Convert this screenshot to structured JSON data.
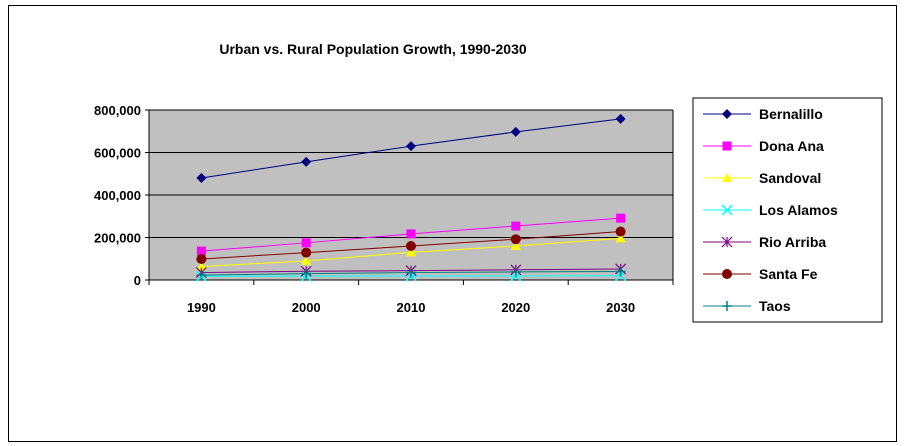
{
  "chart_data": {
    "type": "line",
    "title": "Urban vs. Rural Population Growth, 1990-2030",
    "xlabel": "",
    "ylabel": "",
    "categories": [
      "1990",
      "2000",
      "2010",
      "2020",
      "2030"
    ],
    "ylim": [
      0,
      800000
    ],
    "yticks": [
      0,
      200000,
      400000,
      600000,
      800000
    ],
    "ytick_labels": [
      "0",
      "200,000",
      "400,000",
      "600,000",
      "800,000"
    ],
    "grid": true,
    "plot_background": "#c0c0c0",
    "legend_position": "right",
    "series": [
      {
        "name": "Bernalillo",
        "color": "#000080",
        "marker": "diamond",
        "values": [
          480000,
          556000,
          630000,
          697000,
          758000
        ]
      },
      {
        "name": "Dona Ana",
        "color": "#ff00ff",
        "marker": "square",
        "values": [
          136000,
          175000,
          217000,
          254000,
          291000
        ]
      },
      {
        "name": "Sandoval",
        "color": "#ffff00",
        "marker": "triangle",
        "values": [
          63000,
          90000,
          130000,
          160000,
          196000
        ]
      },
      {
        "name": "Los Alamos",
        "color": "#00ffff",
        "marker": "x",
        "values": [
          18000,
          18000,
          19000,
          19000,
          20000
        ]
      },
      {
        "name": "Rio Arriba",
        "color": "#800080",
        "marker": "asterisk",
        "values": [
          35000,
          41000,
          44000,
          48000,
          52000
        ]
      },
      {
        "name": "Santa Fe",
        "color": "#800000",
        "marker": "circle",
        "values": [
          99000,
          129000,
          160000,
          192000,
          228000
        ]
      },
      {
        "name": "Taos",
        "color": "#008080",
        "marker": "plus",
        "values": [
          23000,
          30000,
          35000,
          38000,
          40000
        ]
      }
    ]
  }
}
